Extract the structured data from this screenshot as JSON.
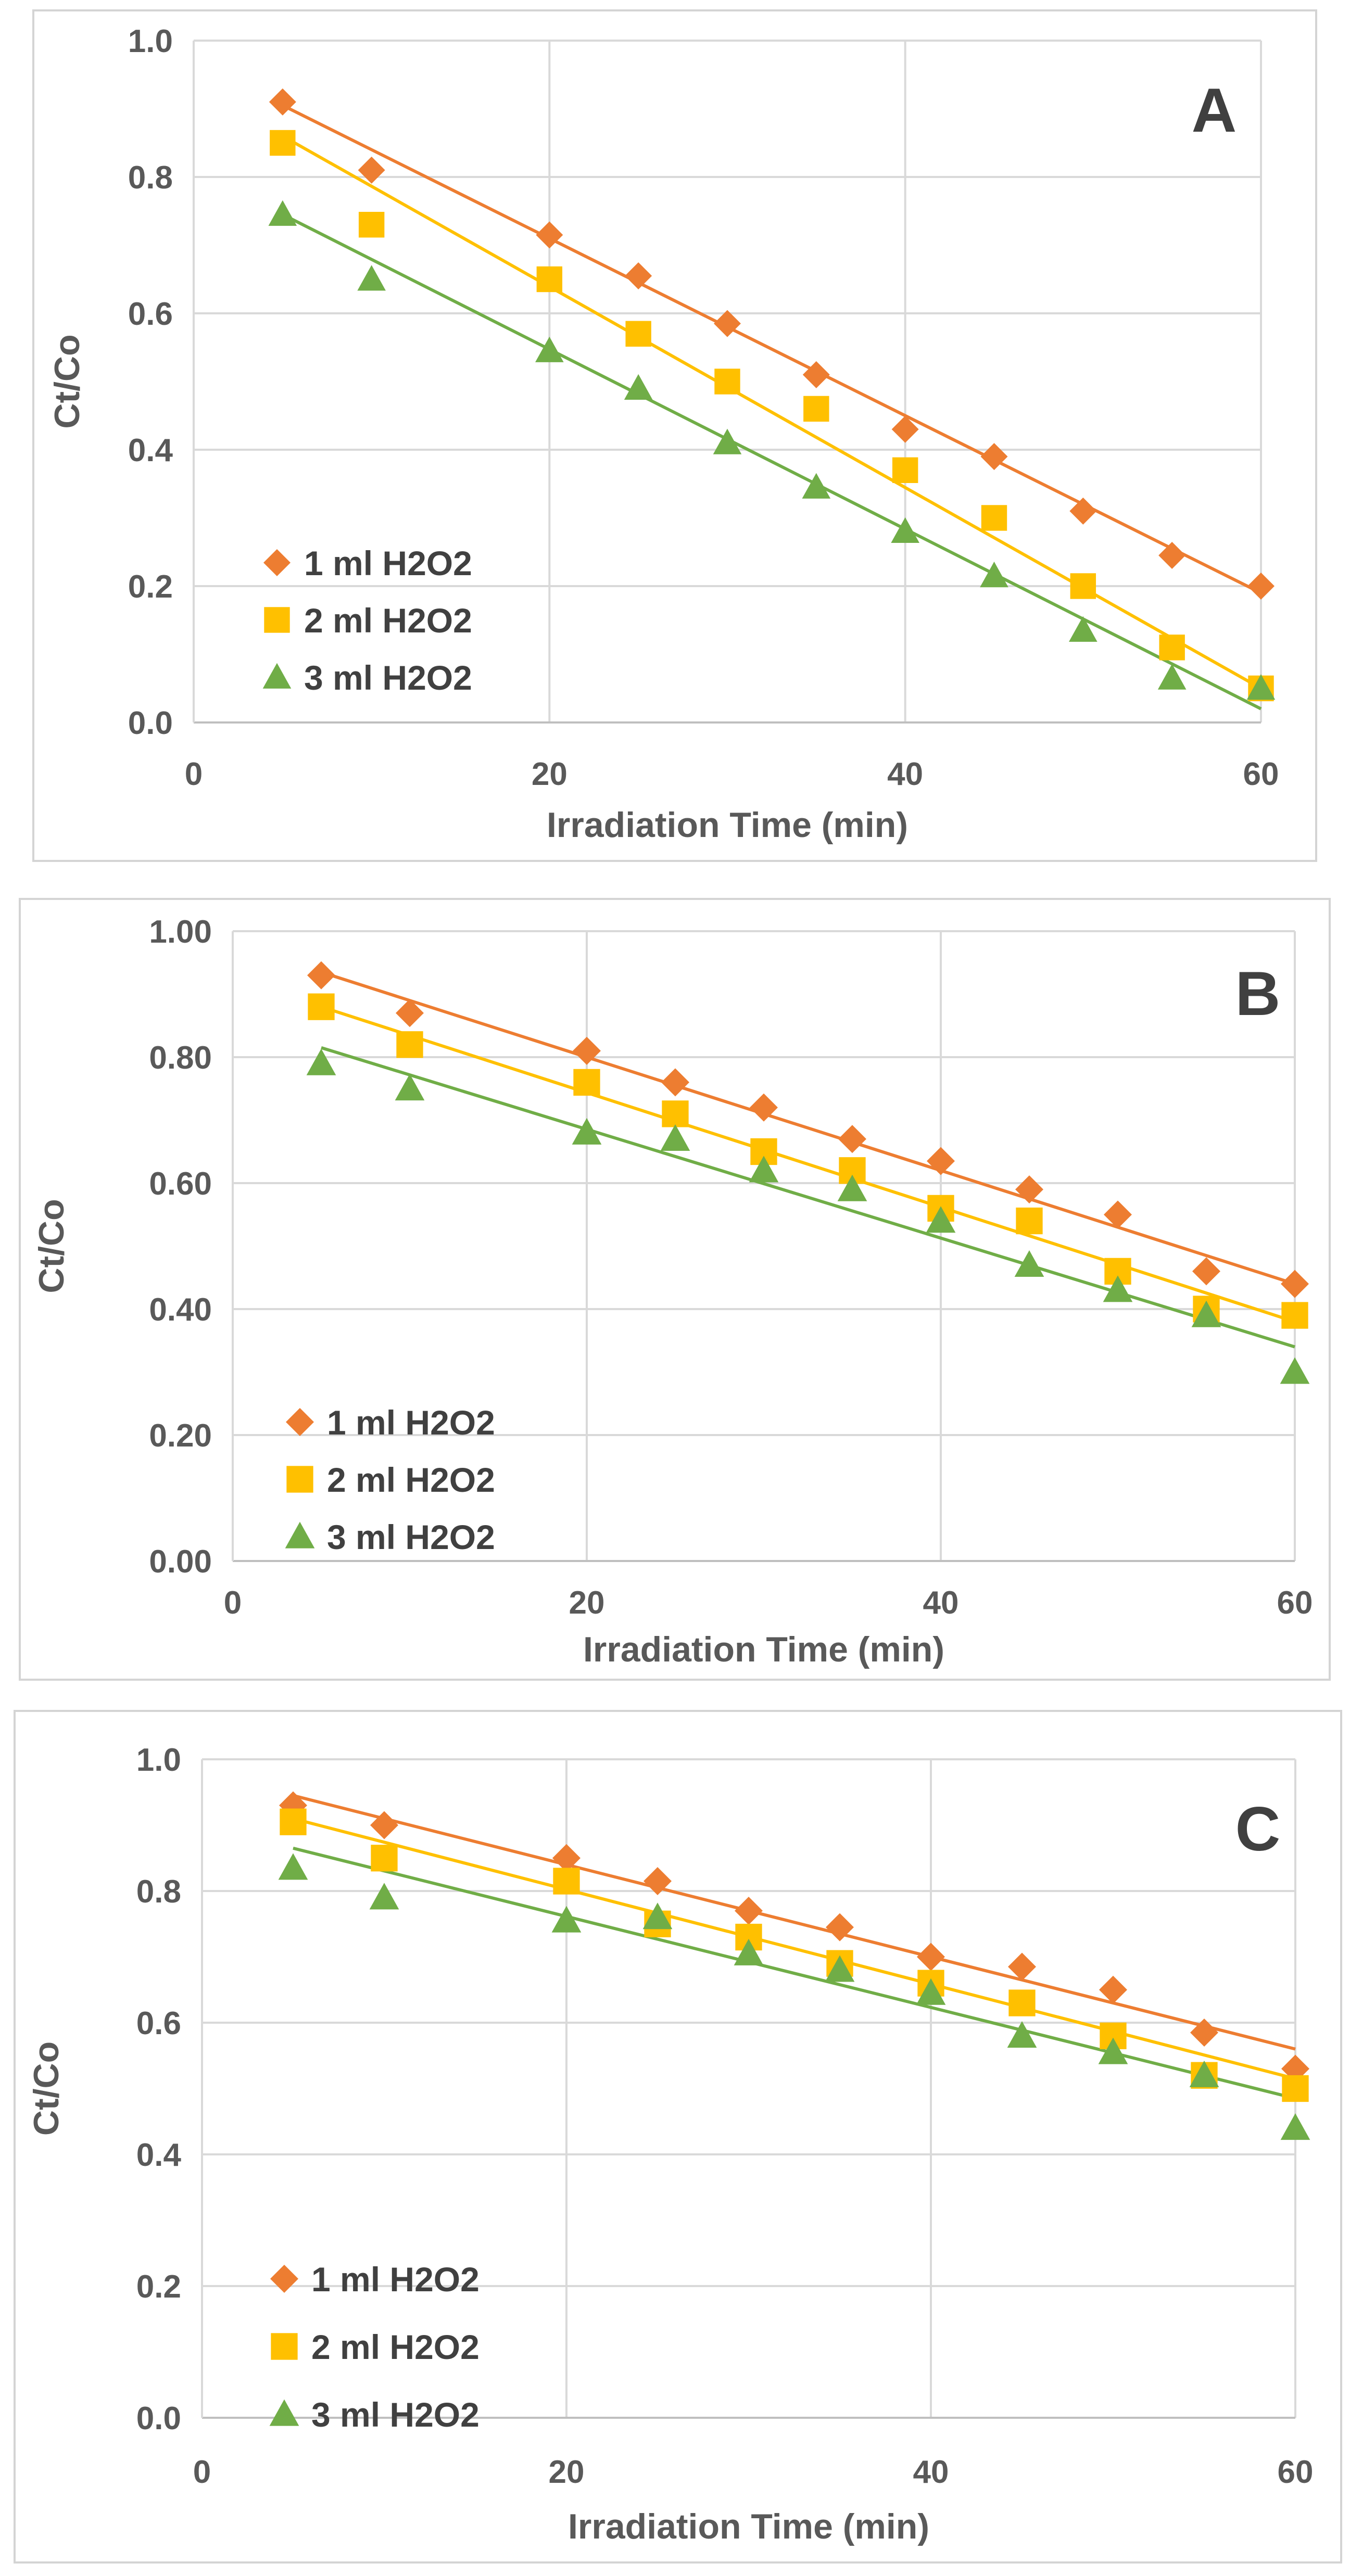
{
  "colors": {
    "series1": "#ED7D31",
    "series2": "#FFC000",
    "series3": "#70AD47"
  },
  "chart_data": [
    {
      "type": "scatter",
      "panel_label": "A",
      "xlabel": "Irradiation Time (min)",
      "ylabel": "Ct/Co",
      "xlim": [
        0,
        60
      ],
      "ylim": [
        0,
        1
      ],
      "x_ticks": [
        "0",
        "20",
        "40",
        "60"
      ],
      "y_ticks": [
        "0.0",
        "0.2",
        "0.4",
        "0.6",
        "0.8",
        "1.0"
      ],
      "x": [
        5,
        10,
        20,
        25,
        30,
        35,
        40,
        45,
        50,
        55,
        60
      ],
      "series": [
        {
          "name": "1 ml H2O2",
          "marker": "diamond",
          "values": [
            0.91,
            0.81,
            0.715,
            0.655,
            0.585,
            0.51,
            0.43,
            0.39,
            0.31,
            0.245,
            0.2
          ],
          "trendline": [
            0.905,
            0.19
          ]
        },
        {
          "name": "2 ml H2O2",
          "marker": "square",
          "values": [
            0.85,
            0.73,
            0.65,
            0.57,
            0.5,
            0.46,
            0.37,
            0.3,
            0.2,
            0.11,
            0.05
          ],
          "trendline": [
            0.86,
            0.05
          ]
        },
        {
          "name": "3 ml H2O2",
          "marker": "triangle",
          "values": [
            0.745,
            0.65,
            0.545,
            0.49,
            0.41,
            0.345,
            0.28,
            0.215,
            0.135,
            0.065,
            0.05
          ],
          "trendline": [
            0.745,
            0.02
          ]
        }
      ]
    },
    {
      "type": "scatter",
      "panel_label": "B",
      "xlabel": "Irradiation Time (min)",
      "ylabel": "Ct/Co",
      "xlim": [
        0,
        60
      ],
      "ylim": [
        0,
        1
      ],
      "x_ticks": [
        "0",
        "20",
        "40",
        "60"
      ],
      "y_ticks": [
        "0.00",
        "0.20",
        "0.40",
        "0.60",
        "0.80",
        "1.00"
      ],
      "x": [
        5,
        10,
        20,
        25,
        30,
        35,
        40,
        45,
        50,
        55,
        60
      ],
      "series": [
        {
          "name": "1 ml H2O2",
          "marker": "diamond",
          "values": [
            0.93,
            0.87,
            0.81,
            0.76,
            0.72,
            0.67,
            0.635,
            0.59,
            0.55,
            0.46,
            0.44
          ],
          "trendline": [
            0.935,
            0.44
          ]
        },
        {
          "name": "2 ml H2O2",
          "marker": "square",
          "values": [
            0.88,
            0.82,
            0.76,
            0.71,
            0.65,
            0.62,
            0.56,
            0.54,
            0.46,
            0.4,
            0.39
          ],
          "trendline": [
            0.88,
            0.38
          ]
        },
        {
          "name": "3 ml H2O2",
          "marker": "triangle",
          "values": [
            0.79,
            0.75,
            0.68,
            0.67,
            0.62,
            0.59,
            0.54,
            0.47,
            0.43,
            0.39,
            0.3
          ],
          "trendline": [
            0.815,
            0.34
          ]
        }
      ]
    },
    {
      "type": "scatter",
      "panel_label": "C",
      "xlabel": "Irradiation Time (min)",
      "ylabel": "Ct/Co",
      "xlim": [
        0,
        60
      ],
      "ylim": [
        0,
        1
      ],
      "x_ticks": [
        "0",
        "20",
        "40",
        "60"
      ],
      "y_ticks": [
        "0.0",
        "0.2",
        "0.4",
        "0.6",
        "0.8",
        "1.0"
      ],
      "x": [
        5,
        10,
        20,
        25,
        30,
        35,
        40,
        45,
        50,
        55,
        60
      ],
      "series": [
        {
          "name": "1 ml H2O2",
          "marker": "diamond",
          "values": [
            0.93,
            0.9,
            0.85,
            0.815,
            0.77,
            0.745,
            0.7,
            0.685,
            0.65,
            0.585,
            0.53
          ],
          "trendline": [
            0.945,
            0.56
          ]
        },
        {
          "name": "2 ml H2O2",
          "marker": "square",
          "values": [
            0.905,
            0.85,
            0.815,
            0.75,
            0.73,
            0.69,
            0.66,
            0.63,
            0.58,
            0.52,
            0.5
          ],
          "trendline": [
            0.91,
            0.515
          ]
        },
        {
          "name": "3 ml H2O2",
          "marker": "triangle",
          "values": [
            0.835,
            0.79,
            0.755,
            0.76,
            0.705,
            0.68,
            0.645,
            0.58,
            0.555,
            0.52,
            0.44
          ],
          "trendline": [
            0.865,
            0.485
          ]
        }
      ]
    }
  ]
}
